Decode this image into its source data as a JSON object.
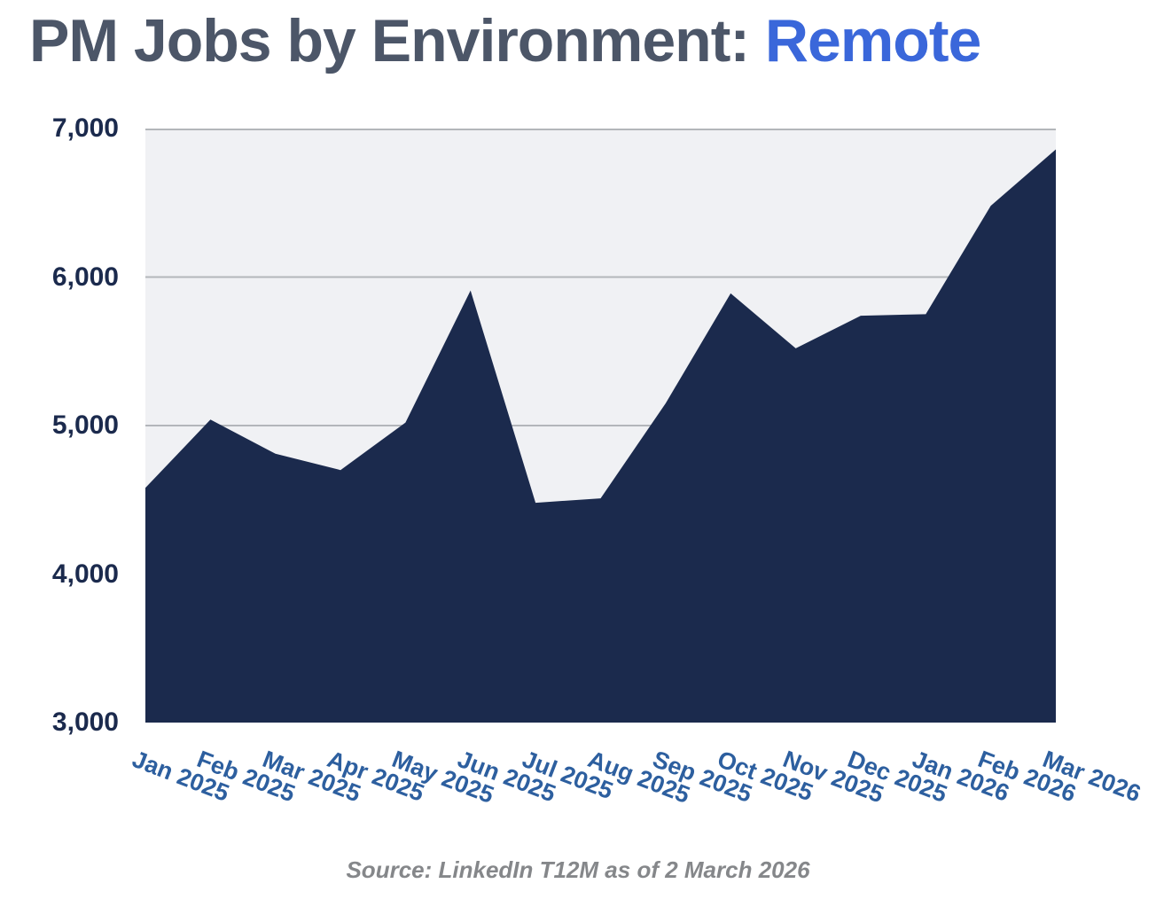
{
  "header": {
    "title_prefix": "PM Jobs by Environment: ",
    "title_highlight": "Remote"
  },
  "footer": {
    "source": "Source: LinkedIn T12M as of 2 March 2026"
  },
  "colors": {
    "area_fill": "#1b2a4d",
    "plot_background": "#f0f1f4",
    "gridline": "#b3b6ba",
    "title_text": "#4c5668",
    "title_accent": "#3a67da",
    "y_label": "#1b2a4d",
    "x_label": "#2d5f9f",
    "source_text": "#85878a"
  },
  "chart_data": {
    "type": "area",
    "title": "PM Jobs by Environment: Remote",
    "categories": [
      "Jan 2025",
      "Feb 2025",
      "Mar 2025",
      "Apr 2025",
      "May 2025",
      "Jun 2025",
      "Jul 2025",
      "Aug 2025",
      "Sep 2025",
      "Oct 2025",
      "Nov 2025",
      "Dec 2025",
      "Jan 2026",
      "Feb 2026",
      "Mar 2026"
    ],
    "values": [
      4580,
      5040,
      4810,
      4700,
      5020,
      5910,
      4480,
      4510,
      5150,
      5890,
      5520,
      5740,
      5750,
      6480,
      6860
    ],
    "ylim": [
      3000,
      7000
    ],
    "yticks": [
      7000,
      6000,
      5000,
      4000,
      3000
    ],
    "ytick_labels": [
      "7,000",
      "6,000",
      "5,000",
      "4,000",
      "3,000"
    ],
    "xlabel": "",
    "ylabel": "",
    "grid": true,
    "legend_position": "none",
    "x_label_rotation_deg": 21
  }
}
